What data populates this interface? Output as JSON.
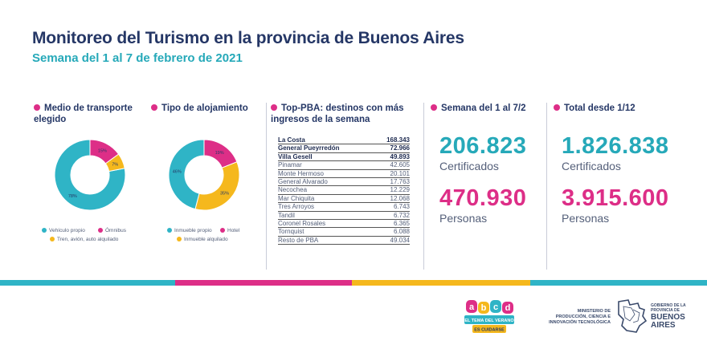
{
  "header": {
    "title": "Monitoreo del Turismo en la provincia de Buenos Aires",
    "subtitle": "Semana del 1 al 7 de febrero de 2021"
  },
  "sections": {
    "transport": "Medio de transporte elegido",
    "lodging": "Tipo de alojamiento",
    "top_pba": "Top-PBA: destinos con más ingresos de la semana",
    "week": "Semana del 1 al 7/2",
    "total": "Total desde 1/12"
  },
  "transport_chart": {
    "type": "pie",
    "slices": [
      {
        "label": "78%",
        "value": 78,
        "color": "#2fb4c6",
        "name": "Vehículo propio"
      },
      {
        "label": "15%",
        "value": 15,
        "color": "#dd2e87",
        "name": "Ómnibus"
      },
      {
        "label": "7%",
        "value": 7,
        "color": "#f5b81d",
        "name": "Tren, avión, auto alquilado"
      }
    ],
    "legend": [
      "Vehículo propio",
      "Ómnibus",
      "Tren, avión, auto alquilado"
    ]
  },
  "lodging_chart": {
    "type": "pie",
    "slices": [
      {
        "label": "46%",
        "value": 46,
        "color": "#2fb4c6",
        "name": "Inmueble propio"
      },
      {
        "label": "19%",
        "value": 19,
        "color": "#dd2e87",
        "name": "Hotel"
      },
      {
        "label": "35%",
        "value": 35,
        "color": "#f5b81d",
        "name": "Inmueble alquilado"
      }
    ],
    "legend": [
      "Inmueble propio",
      "Hotel",
      "Inmueble alquilado"
    ]
  },
  "chart_data": [
    {
      "type": "pie",
      "title": "Medio de transporte elegido",
      "categories": [
        "Vehículo propio",
        "Ómnibus",
        "Tren, avión, auto alquilado"
      ],
      "values": [
        78,
        15,
        7
      ]
    },
    {
      "type": "pie",
      "title": "Tipo de alojamiento",
      "categories": [
        "Inmueble propio",
        "Hotel",
        "Inmueble alquilado"
      ],
      "values": [
        46,
        19,
        35
      ]
    },
    {
      "type": "table",
      "title": "Top-PBA: destinos con más ingresos de la semana",
      "categories": [
        "La Costa",
        "General Pueyrredón",
        "Villa Gesell",
        "Pinamar",
        "Monte Hermoso",
        "General Alvarado",
        "Necochea",
        "Mar Chiquita",
        "Tres Arroyos",
        "Tandil",
        "Coronel Rosales",
        "Tornquist",
        "Resto de PBA"
      ],
      "values": [
        168343,
        72966,
        49893,
        42605,
        20101,
        17763,
        12229,
        12068,
        6743,
        6732,
        6365,
        6088,
        49034
      ]
    }
  ],
  "destinations": [
    {
      "name": "La Costa",
      "value": "168.343"
    },
    {
      "name": "General Pueyrredón",
      "value": "72.966"
    },
    {
      "name": "Villa Gesell",
      "value": "49.893"
    },
    {
      "name": "Pinamar",
      "value": "42.605"
    },
    {
      "name": "Monte Hermoso",
      "value": "20.101"
    },
    {
      "name": "General Alvarado",
      "value": "17.763"
    },
    {
      "name": "Necochea",
      "value": "12.229"
    },
    {
      "name": "Mar Chiquita",
      "value": "12.068"
    },
    {
      "name": "Tres Arroyos",
      "value": "6.743"
    },
    {
      "name": "Tandil",
      "value": "6.732"
    },
    {
      "name": "Coronel Rosales",
      "value": "6.365"
    },
    {
      "name": "Tornquist",
      "value": "6.088"
    },
    {
      "name": "Resto de PBA",
      "value": "49.034"
    }
  ],
  "week_stats": {
    "certificados": "206.823",
    "certificados_label": "Certificados",
    "personas": "470.930",
    "personas_label": "Personas"
  },
  "total_stats": {
    "certificados": "1.826.838",
    "certificados_label": "Certificados",
    "personas": "3.915.600",
    "personas_label": "Personas"
  },
  "footer": {
    "abcd_letters": [
      "a",
      "b",
      "c",
      "d"
    ],
    "abcd_tagline_1": "EL TEMA DEL VERANO",
    "abcd_tagline_2": "ES CUIDARSE",
    "ministry_1": "MINISTERIO DE",
    "ministry_2": "PRODUCCIÓN, CIENCIA E",
    "ministry_3": "INNOVACIÓN TECNOLÓGICA",
    "gov_1": "GOBIERNO DE LA",
    "gov_2": "PROVINCIA DE",
    "gov_3": "BUENOS",
    "gov_4": "AIRES"
  },
  "colors": {
    "navy": "#253766",
    "teal": "#2fb4c6",
    "pink": "#dd2e87",
    "yellow": "#f5b81d",
    "strip": [
      "#2fb4c6",
      "#dd2e87",
      "#f5b81d",
      "#2fb4c6"
    ]
  }
}
